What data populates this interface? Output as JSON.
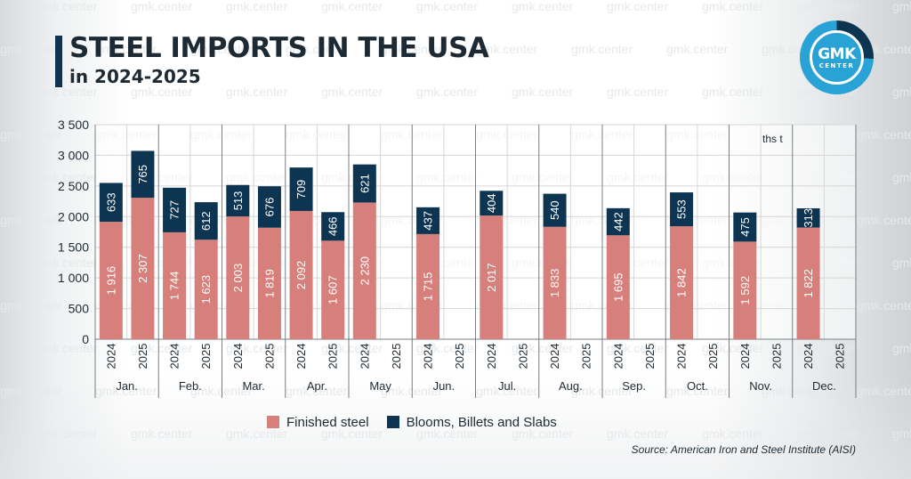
{
  "title": "STEEL IMPORTS IN THE USA",
  "subtitle": "in 2024-2025",
  "logo": {
    "main": "GMK",
    "sub": "CENTER"
  },
  "watermark": "gmk.center",
  "unit_label": "ths t",
  "source": "Source: American Iron and Steel Institute (AISI)",
  "colors": {
    "finished": "#d77f7b",
    "semi": "#0d3552",
    "accent": "#29a3d6",
    "text": "#1d2a33",
    "grid": "#d6d6d6"
  },
  "legend": [
    {
      "label": "Finished steel",
      "color": "#d77f7b"
    },
    {
      "label": "Blooms, Billets and Slabs",
      "color": "#0d3552"
    }
  ],
  "chart_data": {
    "type": "bar",
    "stacked": true,
    "ylim": [
      0,
      3500
    ],
    "yticks": [
      0,
      500,
      1000,
      1500,
      2000,
      2500,
      3000,
      3500
    ],
    "ytick_labels": [
      "0",
      "500",
      "1 000",
      "1 500",
      "2 000",
      "2 500",
      "3 000",
      "3 500"
    ],
    "months": [
      "Jan.",
      "Feb.",
      "Mar.",
      "Apr.",
      "May",
      "Jun.",
      "Jul.",
      "Aug.",
      "Sep.",
      "Oct.",
      "Nov.",
      "Dec."
    ],
    "years": [
      "2024",
      "2025"
    ],
    "series": [
      {
        "name": "Finished steel",
        "values": [
          1916,
          2307,
          1744,
          1623,
          2003,
          1819,
          2092,
          1607,
          2230,
          null,
          1715,
          null,
          2017,
          null,
          1833,
          null,
          1695,
          null,
          1842,
          null,
          1592,
          null,
          1822,
          null
        ],
        "labels": [
          "1 916",
          "2 307",
          "1 744",
          "1 623",
          "2 003",
          "1 819",
          "2 092",
          "1 607",
          "2 230",
          "",
          "1 715",
          "",
          "2 017",
          "",
          "1 833",
          "",
          "1 695",
          "",
          "1 842",
          "",
          "1 592",
          "",
          "1 822",
          ""
        ]
      },
      {
        "name": "Blooms, Billets and Slabs",
        "values": [
          633,
          765,
          727,
          612,
          513,
          676,
          709,
          466,
          621,
          null,
          437,
          null,
          404,
          null,
          540,
          null,
          442,
          null,
          553,
          null,
          475,
          null,
          313,
          null
        ],
        "labels": [
          "633",
          "765",
          "727",
          "612",
          "513",
          "676",
          "709",
          "466",
          "621",
          "",
          "437",
          "",
          "404",
          "",
          "540",
          "",
          "442",
          "",
          "553",
          "",
          "475",
          "",
          "313",
          ""
        ]
      }
    ]
  }
}
